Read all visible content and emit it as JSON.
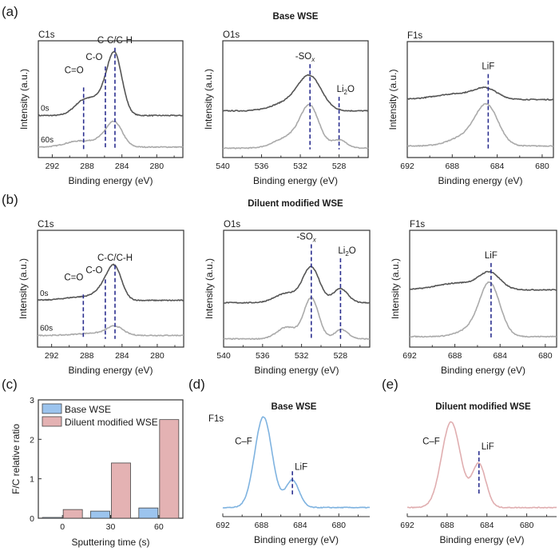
{
  "figure": {
    "panel_labels": [
      "(a)",
      "(b)",
      "(c)",
      "(d)",
      "(e)"
    ],
    "row_titles": {
      "a": "Base WSE",
      "b": "Diluent modified WSE",
      "d": "Base WSE",
      "e": "Diluent modified WSE"
    }
  },
  "colors": {
    "spectrum_0s": "#555555",
    "spectrum_60s": "#aaaaaa",
    "marker": "#2b2f8f",
    "base_bar": "#9cc4ee",
    "diluent_bar": "#e4b2b3",
    "bar_edge": "#444444",
    "d_line": "#7fb3e0",
    "e_line": "#e0aeb0"
  },
  "chart_data": [
    {
      "id": "a-C1s",
      "type": "line",
      "panel": "(a)",
      "title": "Base WSE",
      "region": "C1s",
      "xlabel": "Binding energy (eV)",
      "ylabel": "Intensity (a.u.)",
      "xlim": [
        293.6,
        277
      ],
      "xticks": [
        292,
        288,
        284,
        280
      ],
      "ylim": [
        0,
        1
      ],
      "series": [
        {
          "name": "0s",
          "baseline": 0.36,
          "peaks": [
            [
              288.4,
              0.12,
              1.1
            ],
            [
              286.0,
              0.15,
              1.2
            ],
            [
              284.8,
              0.45,
              0.85
            ]
          ]
        },
        {
          "name": "60s",
          "baseline": 0.09,
          "peaks": [
            [
              289.0,
              0.05,
              1.5
            ],
            [
              286.0,
              0.06,
              1.2
            ],
            [
              284.8,
              0.18,
              0.9
            ]
          ]
        }
      ],
      "markers": [
        {
          "x": 288.4,
          "label": "C=O"
        },
        {
          "x": 285.9,
          "label": "C-O"
        },
        {
          "x": 284.8,
          "label": "C-C/C-H"
        }
      ]
    },
    {
      "id": "a-O1s",
      "type": "line",
      "panel": "(a)",
      "region": "O1s",
      "xlabel": "Binding energy (eV)",
      "ylabel": "Intensity (a.u.)",
      "xlim": [
        540,
        525
      ],
      "xticks": [
        540,
        536,
        532,
        528
      ],
      "ylim": [
        0,
        1
      ],
      "series": [
        {
          "name": "0s",
          "baseline": 0.4,
          "peaks": [
            [
              531.0,
              0.28,
              1.2
            ],
            [
              533.3,
              0.07,
              1.6
            ]
          ]
        },
        {
          "name": "60s",
          "baseline": 0.08,
          "peaks": [
            [
              531.0,
              0.33,
              0.95
            ],
            [
              533.0,
              0.1,
              1.5
            ],
            [
              528.0,
              0.07,
              0.8
            ]
          ]
        }
      ],
      "markers": [
        {
          "x": 531.0,
          "label": "-SOx"
        },
        {
          "x": 528.0,
          "label": "Li2O"
        }
      ]
    },
    {
      "id": "a-F1s",
      "type": "line",
      "panel": "(a)",
      "region": "F1s",
      "xlabel": "Binding energy (eV)",
      "ylabel": "Intensity (a.u.)",
      "xlim": [
        692,
        679
      ],
      "xticks": [
        692,
        688,
        684,
        680
      ],
      "ylim": [
        0,
        1
      ],
      "series": [
        {
          "name": "0s",
          "baseline": 0.5,
          "peaks": [
            [
              685.0,
              0.08,
              1.0
            ],
            [
              687.5,
              0.05,
              2.0
            ]
          ]
        },
        {
          "name": "60s",
          "baseline": 0.1,
          "peaks": [
            [
              684.9,
              0.33,
              1.0
            ],
            [
              686.8,
              0.08,
              1.4
            ]
          ]
        }
      ],
      "markers": [
        {
          "x": 684.8,
          "label": "LiF"
        }
      ]
    },
    {
      "id": "b-C1s",
      "type": "line",
      "panel": "(b)",
      "title": "Diluent modified WSE",
      "region": "C1s",
      "xlabel": "Binding energy (eV)",
      "ylabel": "Intensity (a.u.)",
      "xlim": [
        293.6,
        277
      ],
      "xticks": [
        292,
        288,
        284,
        280
      ],
      "ylim": [
        0,
        1
      ],
      "series": [
        {
          "name": "0s",
          "baseline": 0.4,
          "peaks": [
            [
              288.5,
              0.03,
              2.0
            ],
            [
              285.9,
              0.1,
              1.0
            ],
            [
              284.8,
              0.24,
              0.8
            ]
          ]
        },
        {
          "name": "60s",
          "baseline": 0.1,
          "peaks": [
            [
              284.8,
              0.07,
              0.9
            ],
            [
              287.0,
              0.02,
              2.0
            ]
          ]
        }
      ],
      "markers": [
        {
          "x": 288.4,
          "label": "C=O"
        },
        {
          "x": 285.9,
          "label": "C-O"
        },
        {
          "x": 284.8,
          "label": "C-C/C-H"
        }
      ]
    },
    {
      "id": "b-O1s",
      "type": "line",
      "panel": "(b)",
      "region": "O1s",
      "xlabel": "Binding energy (eV)",
      "ylabel": "Intensity (a.u.)",
      "xlim": [
        540,
        525
      ],
      "xticks": [
        540,
        536,
        532,
        528
      ],
      "ylim": [
        0,
        1
      ],
      "series": [
        {
          "name": "0s",
          "baseline": 0.38,
          "peaks": [
            [
              531.0,
              0.3,
              0.85
            ],
            [
              533.5,
              0.08,
              1.2
            ],
            [
              528.0,
              0.12,
              0.75
            ]
          ]
        },
        {
          "name": "60s",
          "baseline": 0.07,
          "peaks": [
            [
              531.0,
              0.35,
              0.75
            ],
            [
              533.5,
              0.1,
              1.0
            ],
            [
              527.9,
              0.08,
              0.7
            ]
          ]
        }
      ],
      "markers": [
        {
          "x": 531.0,
          "label": "-SOx"
        },
        {
          "x": 528.0,
          "label": "Li2O"
        }
      ]
    },
    {
      "id": "b-F1s",
      "type": "line",
      "panel": "(b)",
      "region": "F1s",
      "xlabel": "Binding energy (eV)",
      "ylabel": "Intensity (a.u.)",
      "xlim": [
        692,
        679
      ],
      "xticks": [
        692,
        688,
        684,
        680
      ],
      "ylim": [
        0,
        1
      ],
      "series": [
        {
          "name": "0s",
          "baseline": 0.49,
          "peaks": [
            [
              684.9,
              0.13,
              0.9
            ],
            [
              687.5,
              0.06,
              2.0
            ]
          ]
        },
        {
          "name": "60s",
          "baseline": 0.09,
          "peaks": [
            [
              684.9,
              0.44,
              0.9
            ],
            [
              686.5,
              0.06,
              1.2
            ]
          ]
        }
      ],
      "markers": [
        {
          "x": 684.8,
          "label": "LiF"
        }
      ]
    },
    {
      "id": "c-bar",
      "type": "bar",
      "panel": "(c)",
      "xlabel": "Sputtering time (s)",
      "ylabel": "F/C relative ratio",
      "categories": [
        "0",
        "30",
        "60"
      ],
      "ylim": [
        0,
        3
      ],
      "yticks": [
        0,
        1,
        2,
        3
      ],
      "legend": "top-left",
      "series": [
        {
          "name": "Base WSE",
          "values": [
            0.02,
            0.18,
            0.26
          ]
        },
        {
          "name": "Diluent modified WSE",
          "values": [
            0.22,
            1.4,
            2.5
          ]
        }
      ]
    },
    {
      "id": "d-F1s",
      "type": "line",
      "panel": "(d)",
      "title": "Base WSE",
      "region": "F1s",
      "xlabel": "Binding energy (eV)",
      "xlim": [
        692,
        676.8
      ],
      "xticks": [
        692,
        688,
        684,
        680
      ],
      "ylim": [
        0,
        1
      ],
      "series": [
        {
          "name": "F1s",
          "baseline": 0.09,
          "peaks": [
            [
              687.8,
              0.9,
              0.9
            ],
            [
              684.8,
              0.27,
              0.7
            ]
          ]
        }
      ],
      "markers": [
        {
          "x": 684.8,
          "label": "LiF"
        }
      ],
      "annotations": [
        {
          "x": 687.8,
          "label": "C–F"
        }
      ]
    },
    {
      "id": "e-F1s",
      "type": "line",
      "panel": "(e)",
      "title": "Diluent modified WSE",
      "region": "F1s",
      "xlabel": "Binding energy (eV)",
      "xlim": [
        692,
        677
      ],
      "xticks": [
        692,
        688,
        684,
        680
      ],
      "ylim": [
        0,
        1
      ],
      "series": [
        {
          "name": "F1s",
          "baseline": 0.09,
          "peaks": [
            [
              687.6,
              0.85,
              0.95
            ],
            [
              684.8,
              0.43,
              0.7
            ]
          ]
        }
      ],
      "markers": [
        {
          "x": 684.8,
          "label": "LiF"
        }
      ],
      "annotations": [
        {
          "x": 687.6,
          "label": "C–F"
        }
      ]
    }
  ]
}
